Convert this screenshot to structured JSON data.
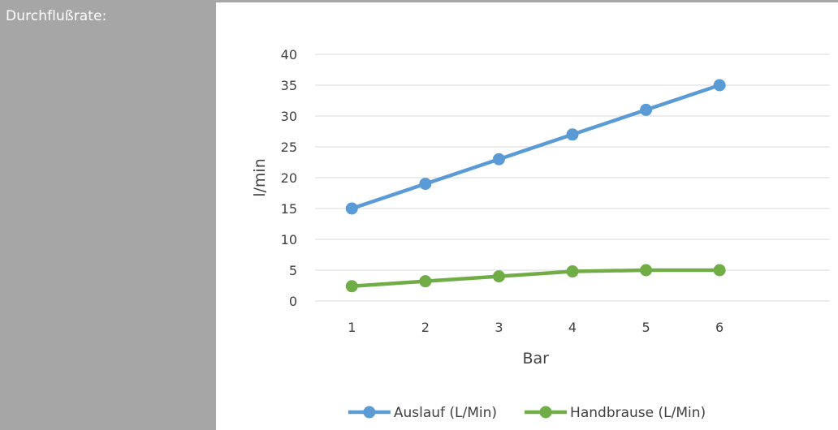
{
  "panel": {
    "label": "Durchflußrate:"
  },
  "chart_data": {
    "type": "line",
    "title": "",
    "xlabel": "Bar",
    "ylabel": "l/min",
    "categories": [
      "1",
      "2",
      "3",
      "4",
      "5",
      "6"
    ],
    "ylim": [
      0,
      40
    ],
    "yticks": [
      "0",
      "5",
      "10",
      "15",
      "20",
      "25",
      "30",
      "35",
      "40"
    ],
    "grid": true,
    "legend_position": "bottom",
    "series": [
      {
        "name": "Auslauf (L/Min)",
        "color": "#5b9bd5",
        "values": [
          15,
          19,
          23,
          27,
          31,
          35
        ]
      },
      {
        "name": "Handbrause (L/Min)",
        "color": "#70ad47",
        "values": [
          2.4,
          3.2,
          4,
          4.8,
          5,
          5
        ]
      }
    ]
  }
}
